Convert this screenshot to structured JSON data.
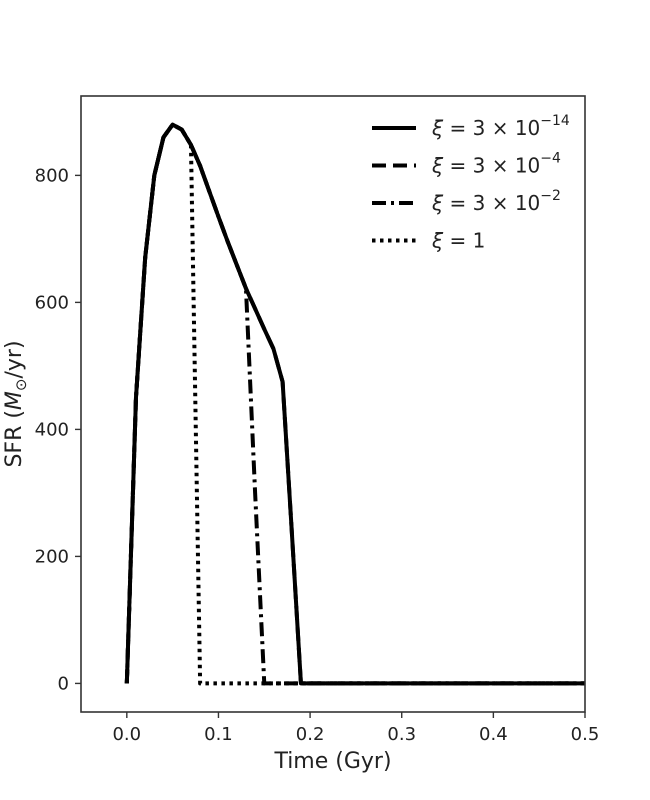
{
  "chart_data": {
    "type": "line",
    "title": "",
    "xlabel": "Time (Gyr)",
    "ylabel": "SFR (M_⊙/yr)",
    "ylabel_parts": {
      "prefix": "SFR (",
      "symbol": "M",
      "subscript": "⊙",
      "suffix": "/yr)"
    },
    "xlim": [
      -0.05,
      0.5
    ],
    "ylim": [
      -45,
      925
    ],
    "xticks": [
      0.0,
      0.1,
      0.2,
      0.3,
      0.4,
      0.5
    ],
    "xtick_labels": [
      "0.0",
      "0.1",
      "0.2",
      "0.3",
      "0.4",
      "0.5"
    ],
    "yticks": [
      0,
      200,
      400,
      600,
      800
    ],
    "ytick_labels": [
      "0",
      "200",
      "400",
      "600",
      "800"
    ],
    "grid": false,
    "legend_position": "top-right",
    "series": [
      {
        "name": "ξ = 3 × 10⁻¹⁴",
        "legend": {
          "lhs": "ξ",
          "mantissa": "3",
          "base": "10",
          "exponent": "−14"
        },
        "style": "solid",
        "color": "#000000",
        "x": [
          0.0,
          0.01,
          0.02,
          0.03,
          0.04,
          0.05,
          0.06,
          0.07,
          0.08,
          0.09,
          0.1,
          0.11,
          0.12,
          0.13,
          0.14,
          0.15,
          0.16,
          0.17,
          0.18,
          0.19,
          0.2,
          0.3,
          0.4,
          0.5
        ],
        "y": [
          0,
          450,
          670,
          800,
          860,
          880,
          872,
          848,
          815,
          775,
          735,
          696,
          659,
          622,
          590,
          558,
          527,
          475,
          240,
          0,
          0,
          0,
          0,
          0
        ]
      },
      {
        "name": "ξ = 3 × 10⁻⁴",
        "legend": {
          "lhs": "ξ",
          "mantissa": "3",
          "base": "10",
          "exponent": "−4"
        },
        "style": "dashed",
        "color": "#000000",
        "x": [
          0.0,
          0.01,
          0.02,
          0.03,
          0.04,
          0.05,
          0.06,
          0.07,
          0.08,
          0.09,
          0.1,
          0.11,
          0.12,
          0.13,
          0.14,
          0.15,
          0.16,
          0.17,
          0.18,
          0.19,
          0.2,
          0.3,
          0.4,
          0.5
        ],
        "y": [
          0,
          450,
          670,
          800,
          860,
          880,
          872,
          848,
          815,
          775,
          735,
          696,
          659,
          622,
          590,
          558,
          527,
          475,
          240,
          0,
          0,
          0,
          0,
          0
        ]
      },
      {
        "name": "ξ = 3 × 10⁻²",
        "legend": {
          "lhs": "ξ",
          "mantissa": "3",
          "base": "10",
          "exponent": "−2"
        },
        "style": "dashdot",
        "color": "#000000",
        "x": [
          0.0,
          0.01,
          0.02,
          0.03,
          0.04,
          0.05,
          0.06,
          0.07,
          0.08,
          0.09,
          0.1,
          0.11,
          0.12,
          0.13,
          0.14,
          0.15,
          0.2,
          0.3,
          0.4,
          0.5
        ],
        "y": [
          0,
          450,
          670,
          800,
          860,
          880,
          872,
          848,
          815,
          775,
          735,
          696,
          659,
          622,
          300,
          0,
          0,
          0,
          0,
          0
        ]
      },
      {
        "name": "ξ = 1",
        "legend": {
          "lhs": "ξ",
          "rhs": "1"
        },
        "style": "dotted",
        "color": "#000000",
        "x": [
          0.0,
          0.01,
          0.02,
          0.03,
          0.04,
          0.05,
          0.06,
          0.07,
          0.08,
          0.09,
          0.1,
          0.2,
          0.3,
          0.4,
          0.5
        ],
        "y": [
          0,
          450,
          670,
          800,
          860,
          880,
          872,
          848,
          0,
          0,
          0,
          0,
          0,
          0,
          0
        ]
      }
    ]
  }
}
